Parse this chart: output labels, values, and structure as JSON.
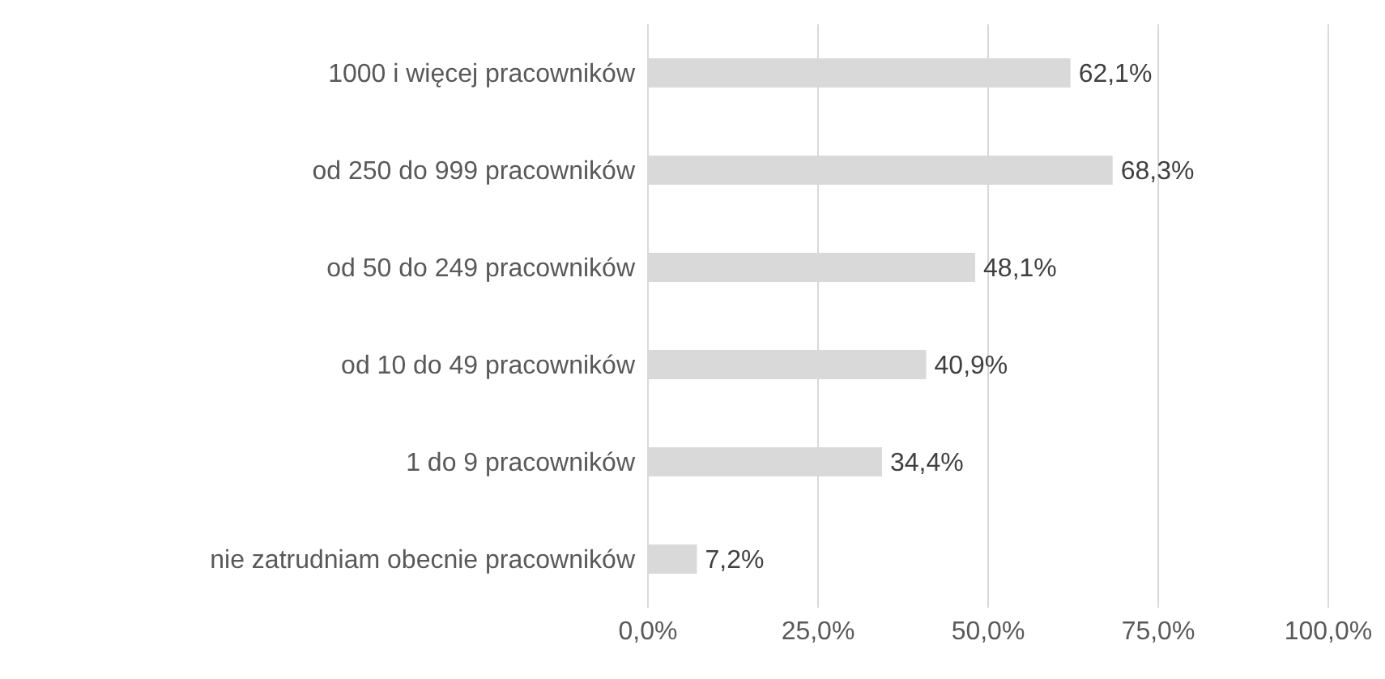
{
  "chart_data": {
    "type": "bar",
    "orientation": "horizontal",
    "categories": [
      "1000 i więcej pracowników",
      "od 250 do 999 pracowników",
      "od 50 do 249 pracowników",
      "od 10 do 49 pracowników",
      "1 do 9 pracowników",
      "nie zatrudniam obecnie pracowników"
    ],
    "values": [
      62.1,
      68.3,
      48.1,
      40.9,
      34.4,
      7.2
    ],
    "value_labels": [
      "62,1%",
      "68,3%",
      "48,1%",
      "40,9%",
      "34,4%",
      "7,2%"
    ],
    "color": "#d9d9d9",
    "xlim": [
      0,
      100
    ],
    "xticks": [
      {
        "value": 0,
        "label": "0,0%"
      },
      {
        "value": 25,
        "label": "25,0%"
      },
      {
        "value": 50,
        "label": "50,0%"
      },
      {
        "value": 75,
        "label": "75,0%"
      },
      {
        "value": 100,
        "label": "100,0%"
      }
    ],
    "grid": "x",
    "legend": false
  }
}
